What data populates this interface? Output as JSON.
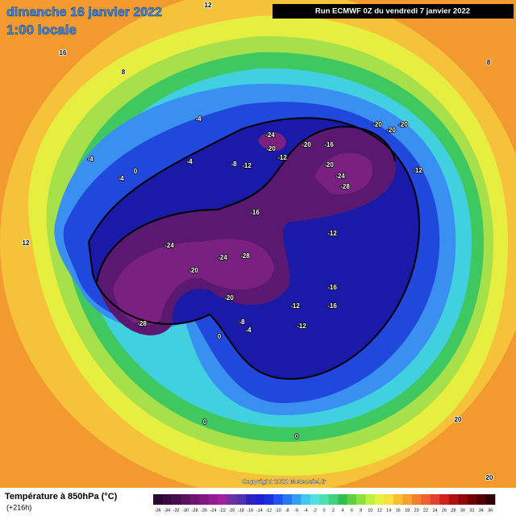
{
  "header": {
    "date": "dimanche 16 janvier 2022",
    "time": "1:00 locale",
    "run": "Run ECMWF 0Z du vendredi 7 janvier 2022"
  },
  "map": {
    "copyright": "Copyright 2022 Meteociel.fr",
    "labels": [
      "-24",
      "-20",
      "-12",
      "-20",
      "-16",
      "-20",
      "-20",
      "-20",
      "-20",
      "-24",
      "-28",
      "-12",
      "-16",
      "-12",
      "-24",
      "-24",
      "-28",
      "-20",
      "-20",
      "-28",
      "-12",
      "-12",
      "-16",
      "-16",
      "-8",
      "-12",
      "-4",
      "-4",
      "-4",
      "0",
      "-4",
      "-8",
      "-4",
      "0",
      "0",
      "0",
      "12",
      "16",
      "20",
      "20",
      "12",
      "8",
      "8"
    ]
  },
  "legend": {
    "title": "Température à 850hPa (°C)",
    "subtitle": "(+216h)",
    "ticks": [
      -36,
      -34,
      -32,
      -30,
      -28,
      -26,
      -24,
      -22,
      -20,
      -18,
      -16,
      -14,
      -12,
      -10,
      -8,
      -6,
      -4,
      -2,
      0,
      2,
      4,
      6,
      8,
      10,
      12,
      14,
      16,
      18,
      20,
      22,
      24,
      26,
      28,
      30,
      32,
      34,
      36
    ],
    "colors": [
      "#2a0830",
      "#3a0a40",
      "#4a0c50",
      "#5c1060",
      "#6e1470",
      "#801880",
      "#921c90",
      "#a020a0",
      "#7030a0",
      "#5030b0",
      "#3020c0",
      "#2020d0",
      "#1830e0",
      "#2050f0",
      "#2878f0",
      "#30a0f0",
      "#40c8f0",
      "#50e0e0",
      "#50e0b0",
      "#40d080",
      "#30c050",
      "#60d040",
      "#90e040",
      "#c0f040",
      "#e8f040",
      "#f8e040",
      "#f8c030",
      "#f8a030",
      "#f08030",
      "#f06030",
      "#e04030",
      "#d02020",
      "#b01010",
      "#900808",
      "#700000",
      "#500000",
      "#300000"
    ]
  }
}
